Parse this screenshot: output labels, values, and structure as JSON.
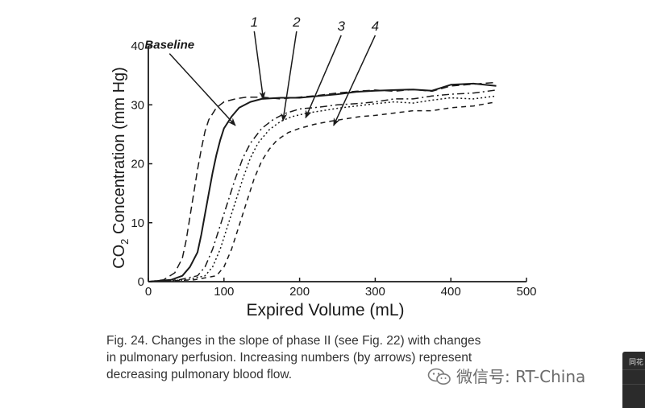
{
  "chart_data": {
    "type": "line",
    "xlabel": "Expired Volume (mL)",
    "ylabel": "CO2 Concentration (mm Hg)",
    "ylabel_parts": {
      "pre": "CO",
      "sub": "2",
      "post": " Concentration (mm Hg)"
    },
    "xlim": [
      0,
      500
    ],
    "ylim": [
      0,
      40
    ],
    "xticks": [
      0,
      100,
      200,
      300,
      400,
      500
    ],
    "yticks": [
      0,
      10,
      20,
      30,
      40
    ],
    "grid": false,
    "legend": "none",
    "series": [
      {
        "name": "Baseline",
        "style": "longdash",
        "x": [
          0,
          20,
          35,
          45,
          50,
          55,
          60,
          65,
          70,
          75,
          80,
          90,
          100,
          115,
          130,
          150,
          175,
          200,
          225,
          250,
          275,
          300,
          325,
          350,
          375,
          400,
          430,
          460
        ],
        "y": [
          0,
          0.3,
          1.5,
          4,
          7,
          11,
          15,
          19,
          22.5,
          25.5,
          27.5,
          29.5,
          30.5,
          31,
          31.3,
          31.3,
          31,
          31.3,
          31.6,
          32,
          32.3,
          32.5,
          32.3,
          32.6,
          32.3,
          33.2,
          33.5,
          33.8
        ]
      },
      {
        "name": "1",
        "style": "solid",
        "x": [
          0,
          30,
          45,
          55,
          65,
          70,
          75,
          80,
          85,
          90,
          95,
          100,
          110,
          120,
          135,
          150,
          175,
          200,
          225,
          250,
          275,
          300,
          325,
          350,
          375,
          400,
          430,
          460
        ],
        "y": [
          0,
          0.3,
          1,
          2.5,
          5,
          8,
          11.5,
          15,
          18.5,
          21.5,
          24,
          26,
          28,
          29.5,
          30.5,
          31,
          31.2,
          31.2,
          31.5,
          31.8,
          32.2,
          32.4,
          32.5,
          32.6,
          32.4,
          33.4,
          33.6,
          33.2
        ]
      },
      {
        "name": "2",
        "style": "dashdot",
        "x": [
          0,
          40,
          65,
          75,
          85,
          95,
          105,
          115,
          125,
          135,
          150,
          165,
          180,
          200,
          225,
          250,
          275,
          300,
          325,
          350,
          375,
          400,
          430,
          460
        ],
        "y": [
          0,
          0.3,
          1,
          2.5,
          5.5,
          9.5,
          13.5,
          17.5,
          21,
          23.5,
          26,
          27.5,
          28.5,
          29.3,
          29.6,
          30,
          30.2,
          30.5,
          31,
          31,
          31.5,
          31.8,
          32,
          32.5
        ]
      },
      {
        "name": "3",
        "style": "dotted",
        "x": [
          0,
          50,
          75,
          85,
          95,
          105,
          115,
          125,
          135,
          145,
          160,
          175,
          190,
          210,
          230,
          250,
          275,
          300,
          325,
          350,
          375,
          400,
          430,
          460
        ],
        "y": [
          0,
          0.3,
          1,
          2.5,
          5.5,
          9.5,
          13.5,
          17.5,
          21,
          23.5,
          25.8,
          27.2,
          28,
          28.6,
          29,
          29.4,
          29.8,
          30.2,
          30.5,
          30.3,
          30.8,
          31.2,
          31,
          31.5
        ]
      },
      {
        "name": "4",
        "style": "dash",
        "x": [
          0,
          60,
          90,
          100,
          110,
          120,
          130,
          140,
          150,
          160,
          170,
          185,
          200,
          220,
          240,
          260,
          280,
          300,
          325,
          350,
          375,
          400,
          430,
          460
        ],
        "y": [
          0,
          0.3,
          1,
          2.5,
          5.5,
          9.5,
          13.5,
          17.5,
          20.5,
          22.5,
          24,
          25.3,
          26,
          26.7,
          27.2,
          27.6,
          28,
          28.2,
          28.6,
          29,
          29,
          29.5,
          29.8,
          30.5
        ]
      }
    ],
    "annotations": [
      {
        "text": "Baseline",
        "italic": true,
        "label_x": 28,
        "label_y": 39.5,
        "arrow_to": [
          115,
          26.5
        ]
      },
      {
        "text": "1",
        "italic": true,
        "label_x": 140,
        "label_y": 43.3,
        "arrow_to": [
          152,
          31
        ]
      },
      {
        "text": "2",
        "italic": true,
        "label_x": 196,
        "label_y": 43.3,
        "arrow_to": [
          178,
          27.3
        ]
      },
      {
        "text": "3",
        "italic": true,
        "label_x": 255,
        "label_y": 42.6,
        "arrow_to": [
          208,
          27.8
        ]
      },
      {
        "text": "4",
        "italic": true,
        "label_x": 300,
        "label_y": 42.6,
        "arrow_to": [
          245,
          26.5
        ]
      }
    ]
  },
  "caption": {
    "line1": "Fig. 24. Changes in the slope of phase II (see Fig. 22) with changes",
    "line2": "in pulmonary perfusion. Increasing numbers (by arrows) represent",
    "line3": "decreasing pulmonary blood flow."
  },
  "watermark": {
    "text": "微信号: RT-China"
  },
  "side_widget": {
    "text": "同花"
  },
  "colors": {
    "ink": "#1a1a1a",
    "caption": "#333333",
    "watermark": "#6b6b6b"
  }
}
